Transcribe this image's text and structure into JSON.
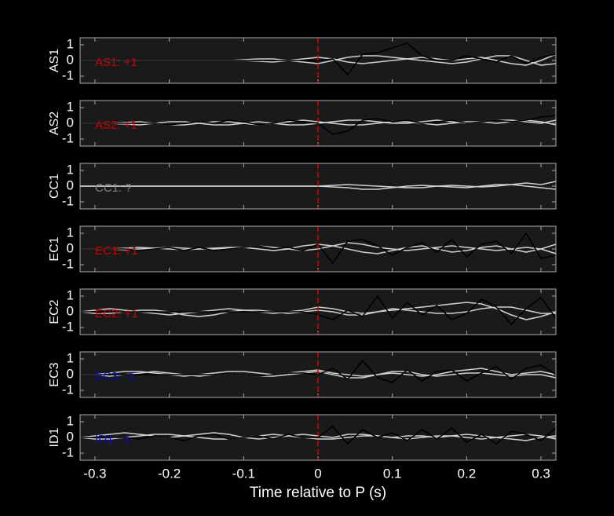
{
  "chart_data": [
    {
      "type": "line",
      "ylabel": "AS1",
      "annotation": {
        "text": "AS1: +1",
        "color": "#cc0000"
      },
      "vline": {
        "x": 0,
        "color": "#dd0000"
      },
      "xlim": [
        -0.32,
        0.32
      ],
      "xticks": [
        -0.3,
        -0.2,
        -0.1,
        0,
        0.1,
        0.2,
        0.3
      ],
      "xtick_labels": false,
      "ylim": [
        -1.45,
        1.45
      ],
      "yticks": [
        -1,
        0,
        1
      ],
      "x": [
        -0.32,
        -0.3,
        -0.28,
        -0.26,
        -0.24,
        -0.22,
        -0.2,
        -0.18,
        -0.16,
        -0.14,
        -0.12,
        -0.1,
        -0.08,
        -0.06,
        -0.04,
        -0.02,
        0,
        0.02,
        0.04,
        0.06,
        0.08,
        0.1,
        0.12,
        0.14,
        0.16,
        0.18,
        0.2,
        0.22,
        0.24,
        0.26,
        0.28,
        0.3,
        0.32
      ],
      "series": [
        {
          "color": "#d0d0d0",
          "values": [
            0,
            0,
            0,
            0,
            0,
            0,
            0,
            0,
            0,
            0,
            0,
            0.05,
            0.1,
            0.1,
            0,
            -0.1,
            -0.2,
            0,
            0.2,
            0.3,
            0.3,
            0.2,
            0.1,
            0,
            -0.1,
            -0.2,
            -0.1,
            0.1,
            0.3,
            0.3,
            0,
            -0.3,
            -0.2
          ]
        },
        {
          "color": "#d0d0d0",
          "values": [
            0,
            0,
            0,
            0,
            0,
            0,
            0,
            0,
            0,
            0,
            0,
            0,
            -0.05,
            -0.1,
            0,
            0.1,
            0.2,
            0.1,
            -0.1,
            -0.2,
            -0.1,
            0,
            0.1,
            0.2,
            0.1,
            0,
            0.1,
            0.2,
            0,
            -0.2,
            -0.3,
            0,
            0.4
          ]
        },
        {
          "color": "#000000",
          "values": [
            0,
            0,
            0,
            0,
            0,
            0,
            0,
            0,
            0,
            0,
            0,
            0,
            0,
            0,
            0,
            0,
            0,
            0.1,
            -0.9,
            0.4,
            0.5,
            0.8,
            1.1,
            0.3,
            0,
            0,
            0.3,
            0.1,
            -0.1,
            0.3,
            -0.2,
            0.2,
            0.4
          ]
        }
      ]
    },
    {
      "type": "line",
      "ylabel": "AS2",
      "annotation": {
        "text": "AS2: +1",
        "color": "#cc0000"
      },
      "vline": {
        "x": 0,
        "color": "#dd0000"
      },
      "xlim": [
        -0.32,
        0.32
      ],
      "xticks": [
        -0.3,
        -0.2,
        -0.1,
        0,
        0.1,
        0.2,
        0.3
      ],
      "xtick_labels": false,
      "ylim": [
        -1.45,
        1.45
      ],
      "yticks": [
        -1,
        0,
        1
      ],
      "x": [
        -0.32,
        -0.3,
        -0.28,
        -0.26,
        -0.24,
        -0.22,
        -0.2,
        -0.18,
        -0.16,
        -0.14,
        -0.12,
        -0.1,
        -0.08,
        -0.06,
        -0.04,
        -0.02,
        0,
        0.02,
        0.04,
        0.06,
        0.08,
        0.1,
        0.12,
        0.14,
        0.16,
        0.18,
        0.2,
        0.22,
        0.24,
        0.26,
        0.28,
        0.3,
        0.32
      ],
      "series": [
        {
          "color": "#d0d0d0",
          "values": [
            0,
            0,
            0,
            0.05,
            0.1,
            0,
            -0.1,
            -0.1,
            0,
            0.1,
            0.1,
            0,
            -0.1,
            0,
            0.1,
            0.2,
            0.1,
            0,
            -0.1,
            -0.1,
            0,
            0.1,
            0.1,
            0,
            -0.1,
            0,
            0.1,
            0.1,
            0,
            0.1,
            0.2,
            0.1,
            -0.1
          ]
        },
        {
          "color": "#d0d0d0",
          "values": [
            0,
            0,
            0,
            -0.05,
            -0.1,
            0,
            0.1,
            0.1,
            0,
            -0.1,
            -0.1,
            0,
            0.1,
            0,
            -0.1,
            -0.1,
            0,
            0.1,
            0.2,
            0.2,
            0.1,
            0,
            0,
            0.1,
            0.2,
            0.1,
            0,
            0.1,
            0.2,
            0.2,
            0.1,
            0,
            0.2
          ]
        },
        {
          "color": "#000000",
          "values": [
            0,
            0,
            0,
            0,
            0,
            0,
            -0.1,
            0,
            0.1,
            0,
            0.2,
            0.1,
            -0.1,
            0,
            0.2,
            0.1,
            0,
            -0.7,
            -0.5,
            0.2,
            0.3,
            0.1,
            0.2,
            0,
            0.1,
            0.2,
            0,
            0.1,
            0.2,
            0.1,
            0.2,
            0.4,
            0.5
          ]
        }
      ]
    },
    {
      "type": "line",
      "ylabel": "CC1",
      "annotation": {
        "text": "CC1: ?",
        "color": "#808080"
      },
      "vline": {
        "x": 0,
        "color": "#dd0000"
      },
      "xlim": [
        -0.32,
        0.32
      ],
      "xticks": [
        -0.3,
        -0.2,
        -0.1,
        0,
        0.1,
        0.2,
        0.3
      ],
      "xtick_labels": false,
      "ylim": [
        -1.45,
        1.45
      ],
      "yticks": [
        -1,
        0,
        1
      ],
      "x": [
        -0.32,
        -0.3,
        -0.28,
        -0.26,
        -0.24,
        -0.22,
        -0.2,
        -0.18,
        -0.16,
        -0.14,
        -0.12,
        -0.1,
        -0.08,
        -0.06,
        -0.04,
        -0.02,
        0,
        0.02,
        0.04,
        0.06,
        0.08,
        0.1,
        0.12,
        0.14,
        0.16,
        0.18,
        0.2,
        0.22,
        0.24,
        0.26,
        0.28,
        0.3,
        0.32
      ],
      "series": [
        {
          "color": "#d0d0d0",
          "values": [
            0,
            0,
            0,
            0,
            0,
            0,
            0,
            0,
            0,
            0,
            0,
            0,
            0,
            0,
            0,
            0,
            0,
            0.05,
            0.1,
            0.05,
            0,
            -0.05,
            -0.1,
            -0.1,
            0,
            0.05,
            0,
            -0.05,
            0,
            0.1,
            0.2,
            0.1,
            0.3
          ]
        },
        {
          "color": "#d0d0d0",
          "values": [
            0,
            0,
            0,
            0,
            0,
            0,
            0,
            0,
            0,
            0,
            0,
            0,
            0,
            0,
            0,
            0,
            0,
            -0.05,
            -0.1,
            -0.2,
            -0.2,
            -0.1,
            0,
            0.05,
            0,
            -0.05,
            -0.1,
            0,
            0.1,
            0.1,
            0,
            -0.1,
            -0.2
          ]
        }
      ]
    },
    {
      "type": "line",
      "ylabel": "EC1",
      "annotation": {
        "text": "EC1: +1",
        "color": "#cc0000"
      },
      "vline": {
        "x": 0,
        "color": "#dd0000"
      },
      "xlim": [
        -0.32,
        0.32
      ],
      "xticks": [
        -0.3,
        -0.2,
        -0.1,
        0,
        0.1,
        0.2,
        0.3
      ],
      "xtick_labels": false,
      "ylim": [
        -1.45,
        1.45
      ],
      "yticks": [
        -1,
        0,
        1
      ],
      "x": [
        -0.32,
        -0.3,
        -0.28,
        -0.26,
        -0.24,
        -0.22,
        -0.2,
        -0.18,
        -0.16,
        -0.14,
        -0.12,
        -0.1,
        -0.08,
        -0.06,
        -0.04,
        -0.02,
        0,
        0.02,
        0.04,
        0.06,
        0.08,
        0.1,
        0.12,
        0.14,
        0.16,
        0.18,
        0.2,
        0.22,
        0.24,
        0.26,
        0.28,
        0.3,
        0.32
      ],
      "series": [
        {
          "color": "#d0d0d0",
          "values": [
            0,
            0,
            0,
            0.05,
            0.1,
            0.05,
            0,
            -0.05,
            0,
            0.05,
            0.1,
            0.1,
            0,
            -0.1,
            0,
            0.2,
            0.3,
            0.2,
            0,
            -0.2,
            -0.3,
            -0.1,
            0.1,
            0.2,
            0,
            -0.2,
            -0.1,
            0.1,
            0.2,
            0,
            -0.2,
            0,
            0.3
          ]
        },
        {
          "color": "#d0d0d0",
          "values": [
            0,
            0,
            0,
            -0.05,
            0,
            0.05,
            0.1,
            0.05,
            0,
            0,
            0.05,
            0.1,
            0.2,
            0.1,
            0,
            -0.1,
            0,
            0.2,
            0.4,
            0.3,
            0.1,
            0,
            -0.1,
            0,
            0.1,
            0.2,
            0.1,
            0,
            -0.1,
            0,
            0.1,
            0,
            -0.3
          ]
        },
        {
          "color": "#000000",
          "values": [
            0,
            0,
            0,
            0,
            -0.1,
            0,
            0.1,
            -0.1,
            0.1,
            -0.1,
            0,
            0.1,
            0.2,
            0,
            0.1,
            -0.1,
            0.3,
            -0.9,
            0.5,
            0.6,
            0.2,
            -0.4,
            0.1,
            0.4,
            -0.2,
            0.6,
            -0.5,
            0.3,
            0.5,
            -0.3,
            1.0,
            -0.6,
            -0.4
          ]
        }
      ]
    },
    {
      "type": "line",
      "ylabel": "EC2",
      "annotation": {
        "text": "EC2: +1",
        "color": "#cc0000"
      },
      "vline": {
        "x": 0,
        "color": "#dd0000"
      },
      "xlim": [
        -0.32,
        0.32
      ],
      "xticks": [
        -0.3,
        -0.2,
        -0.1,
        0,
        0.1,
        0.2,
        0.3
      ],
      "xtick_labels": false,
      "ylim": [
        -1.45,
        1.45
      ],
      "yticks": [
        -1,
        0,
        1
      ],
      "x": [
        -0.32,
        -0.3,
        -0.28,
        -0.26,
        -0.24,
        -0.22,
        -0.2,
        -0.18,
        -0.16,
        -0.14,
        -0.12,
        -0.1,
        -0.08,
        -0.06,
        -0.04,
        -0.02,
        0,
        0.02,
        0.04,
        0.06,
        0.08,
        0.1,
        0.12,
        0.14,
        0.16,
        0.18,
        0.2,
        0.22,
        0.24,
        0.26,
        0.28,
        0.3,
        0.32
      ],
      "series": [
        {
          "color": "#d0d0d0",
          "values": [
            0,
            0.1,
            0.2,
            0.1,
            0,
            -0.1,
            -0.2,
            -0.1,
            0,
            0.1,
            0.2,
            0.1,
            0,
            -0.1,
            0,
            0.1,
            0.3,
            0.2,
            0,
            -0.1,
            0,
            0.1,
            0.2,
            0.3,
            0.4,
            0.5,
            0.6,
            0.5,
            0.2,
            -0.2,
            -0.5,
            -0.3,
            0
          ]
        },
        {
          "color": "#d0d0d0",
          "values": [
            0,
            -0.1,
            -0.1,
            0,
            0.1,
            0.1,
            0,
            -0.2,
            -0.3,
            -0.2,
            0,
            0.1,
            0.1,
            0,
            -0.1,
            0,
            0.1,
            0,
            -0.2,
            -0.2,
            0,
            0.2,
            0.1,
            0,
            -0.1,
            -0.1,
            0,
            0.2,
            0.3,
            0.3,
            0.1,
            -0.1,
            -0.1
          ]
        },
        {
          "color": "#000000",
          "values": [
            0,
            0,
            0,
            0,
            0,
            0,
            0,
            0,
            0,
            0,
            0,
            0,
            0,
            0,
            0,
            0,
            -0.2,
            -0.5,
            0.1,
            -0.3,
            1.0,
            -0.4,
            0.6,
            -0.2,
            0.4,
            -0.5,
            -0.1,
            0.8,
            0.3,
            -0.8,
            0.2,
            0.9,
            -0.4
          ]
        }
      ]
    },
    {
      "type": "line",
      "ylabel": "EC3",
      "annotation": {
        "text": "EC3: -1",
        "color": "#1010b0"
      },
      "vline": {
        "x": 0,
        "color": "#dd0000"
      },
      "xlim": [
        -0.32,
        0.32
      ],
      "xticks": [
        -0.3,
        -0.2,
        -0.1,
        0,
        0.1,
        0.2,
        0.3
      ],
      "xtick_labels": false,
      "ylim": [
        -1.45,
        1.45
      ],
      "yticks": [
        -1,
        0,
        1
      ],
      "x": [
        -0.32,
        -0.3,
        -0.28,
        -0.26,
        -0.24,
        -0.22,
        -0.2,
        -0.18,
        -0.16,
        -0.14,
        -0.12,
        -0.1,
        -0.08,
        -0.06,
        -0.04,
        -0.02,
        0,
        0.02,
        0.04,
        0.06,
        0.08,
        0.1,
        0.12,
        0.14,
        0.16,
        0.18,
        0.2,
        0.22,
        0.24,
        0.26,
        0.28,
        0.3,
        0.32
      ],
      "series": [
        {
          "color": "#d0d0d0",
          "values": [
            0,
            0,
            0.1,
            0.2,
            0.2,
            0.1,
            0,
            -0.1,
            0,
            0.1,
            0.2,
            0.2,
            0.1,
            0,
            0.1,
            0.2,
            0.3,
            0.1,
            0,
            -0.1,
            0,
            0.1,
            0,
            -0.1,
            0,
            0.2,
            0.3,
            0.4,
            0.2,
            0,
            0.1,
            0.2,
            0
          ]
        },
        {
          "color": "#d0d0d0",
          "values": [
            0,
            0,
            -0.1,
            0,
            0.1,
            0.2,
            0.1,
            0,
            -0.1,
            0,
            0.1,
            0,
            -0.1,
            -0.1,
            0,
            0.1,
            0.2,
            0,
            -0.2,
            -0.2,
            0,
            0.2,
            0.2,
            0,
            -0.1,
            0,
            0.1,
            0.1,
            0,
            -0.1,
            0,
            0,
            -0.2
          ]
        },
        {
          "color": "#000000",
          "values": [
            0,
            0,
            0,
            0,
            0,
            0,
            0,
            0,
            0,
            0,
            0.1,
            0,
            -0.1,
            0,
            0.1,
            0.1,
            0,
            0.4,
            -0.3,
            0.9,
            -0.2,
            -0.5,
            0.3,
            -0.4,
            0.2,
            0.3,
            -0.4,
            0.1,
            0.5,
            -0.3,
            0.4,
            0.6,
            0
          ]
        }
      ]
    },
    {
      "type": "line",
      "ylabel": "ID1",
      "annotation": {
        "text": "ID1: -1",
        "color": "#1010b0"
      },
      "vline": {
        "x": 0,
        "color": "#dd0000"
      },
      "xlabel": "Time relative to P (s)",
      "xlim": [
        -0.32,
        0.32
      ],
      "xticks": [
        -0.3,
        -0.2,
        -0.1,
        0,
        0.1,
        0.2,
        0.3
      ],
      "xtick_labels": true,
      "ylim": [
        -1.45,
        1.45
      ],
      "yticks": [
        -1,
        0,
        1
      ],
      "x": [
        -0.32,
        -0.3,
        -0.28,
        -0.26,
        -0.24,
        -0.22,
        -0.2,
        -0.18,
        -0.16,
        -0.14,
        -0.12,
        -0.1,
        -0.08,
        -0.06,
        -0.04,
        -0.02,
        0,
        0.02,
        0.04,
        0.06,
        0.08,
        0.1,
        0.12,
        0.14,
        0.16,
        0.18,
        0.2,
        0.22,
        0.24,
        0.26,
        0.28,
        0.3,
        0.32
      ],
      "series": [
        {
          "color": "#d0d0d0",
          "values": [
            0,
            0.1,
            0.2,
            0.3,
            0.2,
            0.1,
            0,
            0.1,
            0.2,
            0.3,
            0.2,
            0,
            -0.1,
            0,
            0.1,
            0.2,
            0.1,
            0,
            0.2,
            0.2,
            0.1,
            0,
            0.1,
            0.1,
            0,
            0.1,
            0.2,
            0.1,
            0,
            -0.1,
            -0.2,
            0,
            0.1
          ]
        },
        {
          "color": "#d0d0d0",
          "values": [
            0,
            -0.1,
            -0.1,
            0,
            0.1,
            0.2,
            0.2,
            0.1,
            0,
            -0.1,
            -0.1,
            0,
            0.1,
            0.2,
            0.1,
            0,
            -0.1,
            -0.1,
            0,
            0.1,
            0.1,
            0,
            -0.1,
            0,
            0.1,
            0.1,
            0,
            -0.1,
            0,
            0.1,
            0.2,
            0.1,
            -0.1
          ]
        },
        {
          "color": "#000000",
          "values": [
            0,
            0,
            0,
            0,
            -0.1,
            0.1,
            0,
            -0.2,
            0.1,
            0.2,
            -0.1,
            0,
            0.1,
            -0.1,
            0.2,
            0,
            0,
            0.7,
            -0.4,
            0.5,
            0,
            0.3,
            -0.2,
            0.5,
            -0.1,
            0.6,
            -0.3,
            0.2,
            -0.4,
            0.4,
            0.2,
            -0.2,
            0.6
          ]
        }
      ]
    }
  ]
}
